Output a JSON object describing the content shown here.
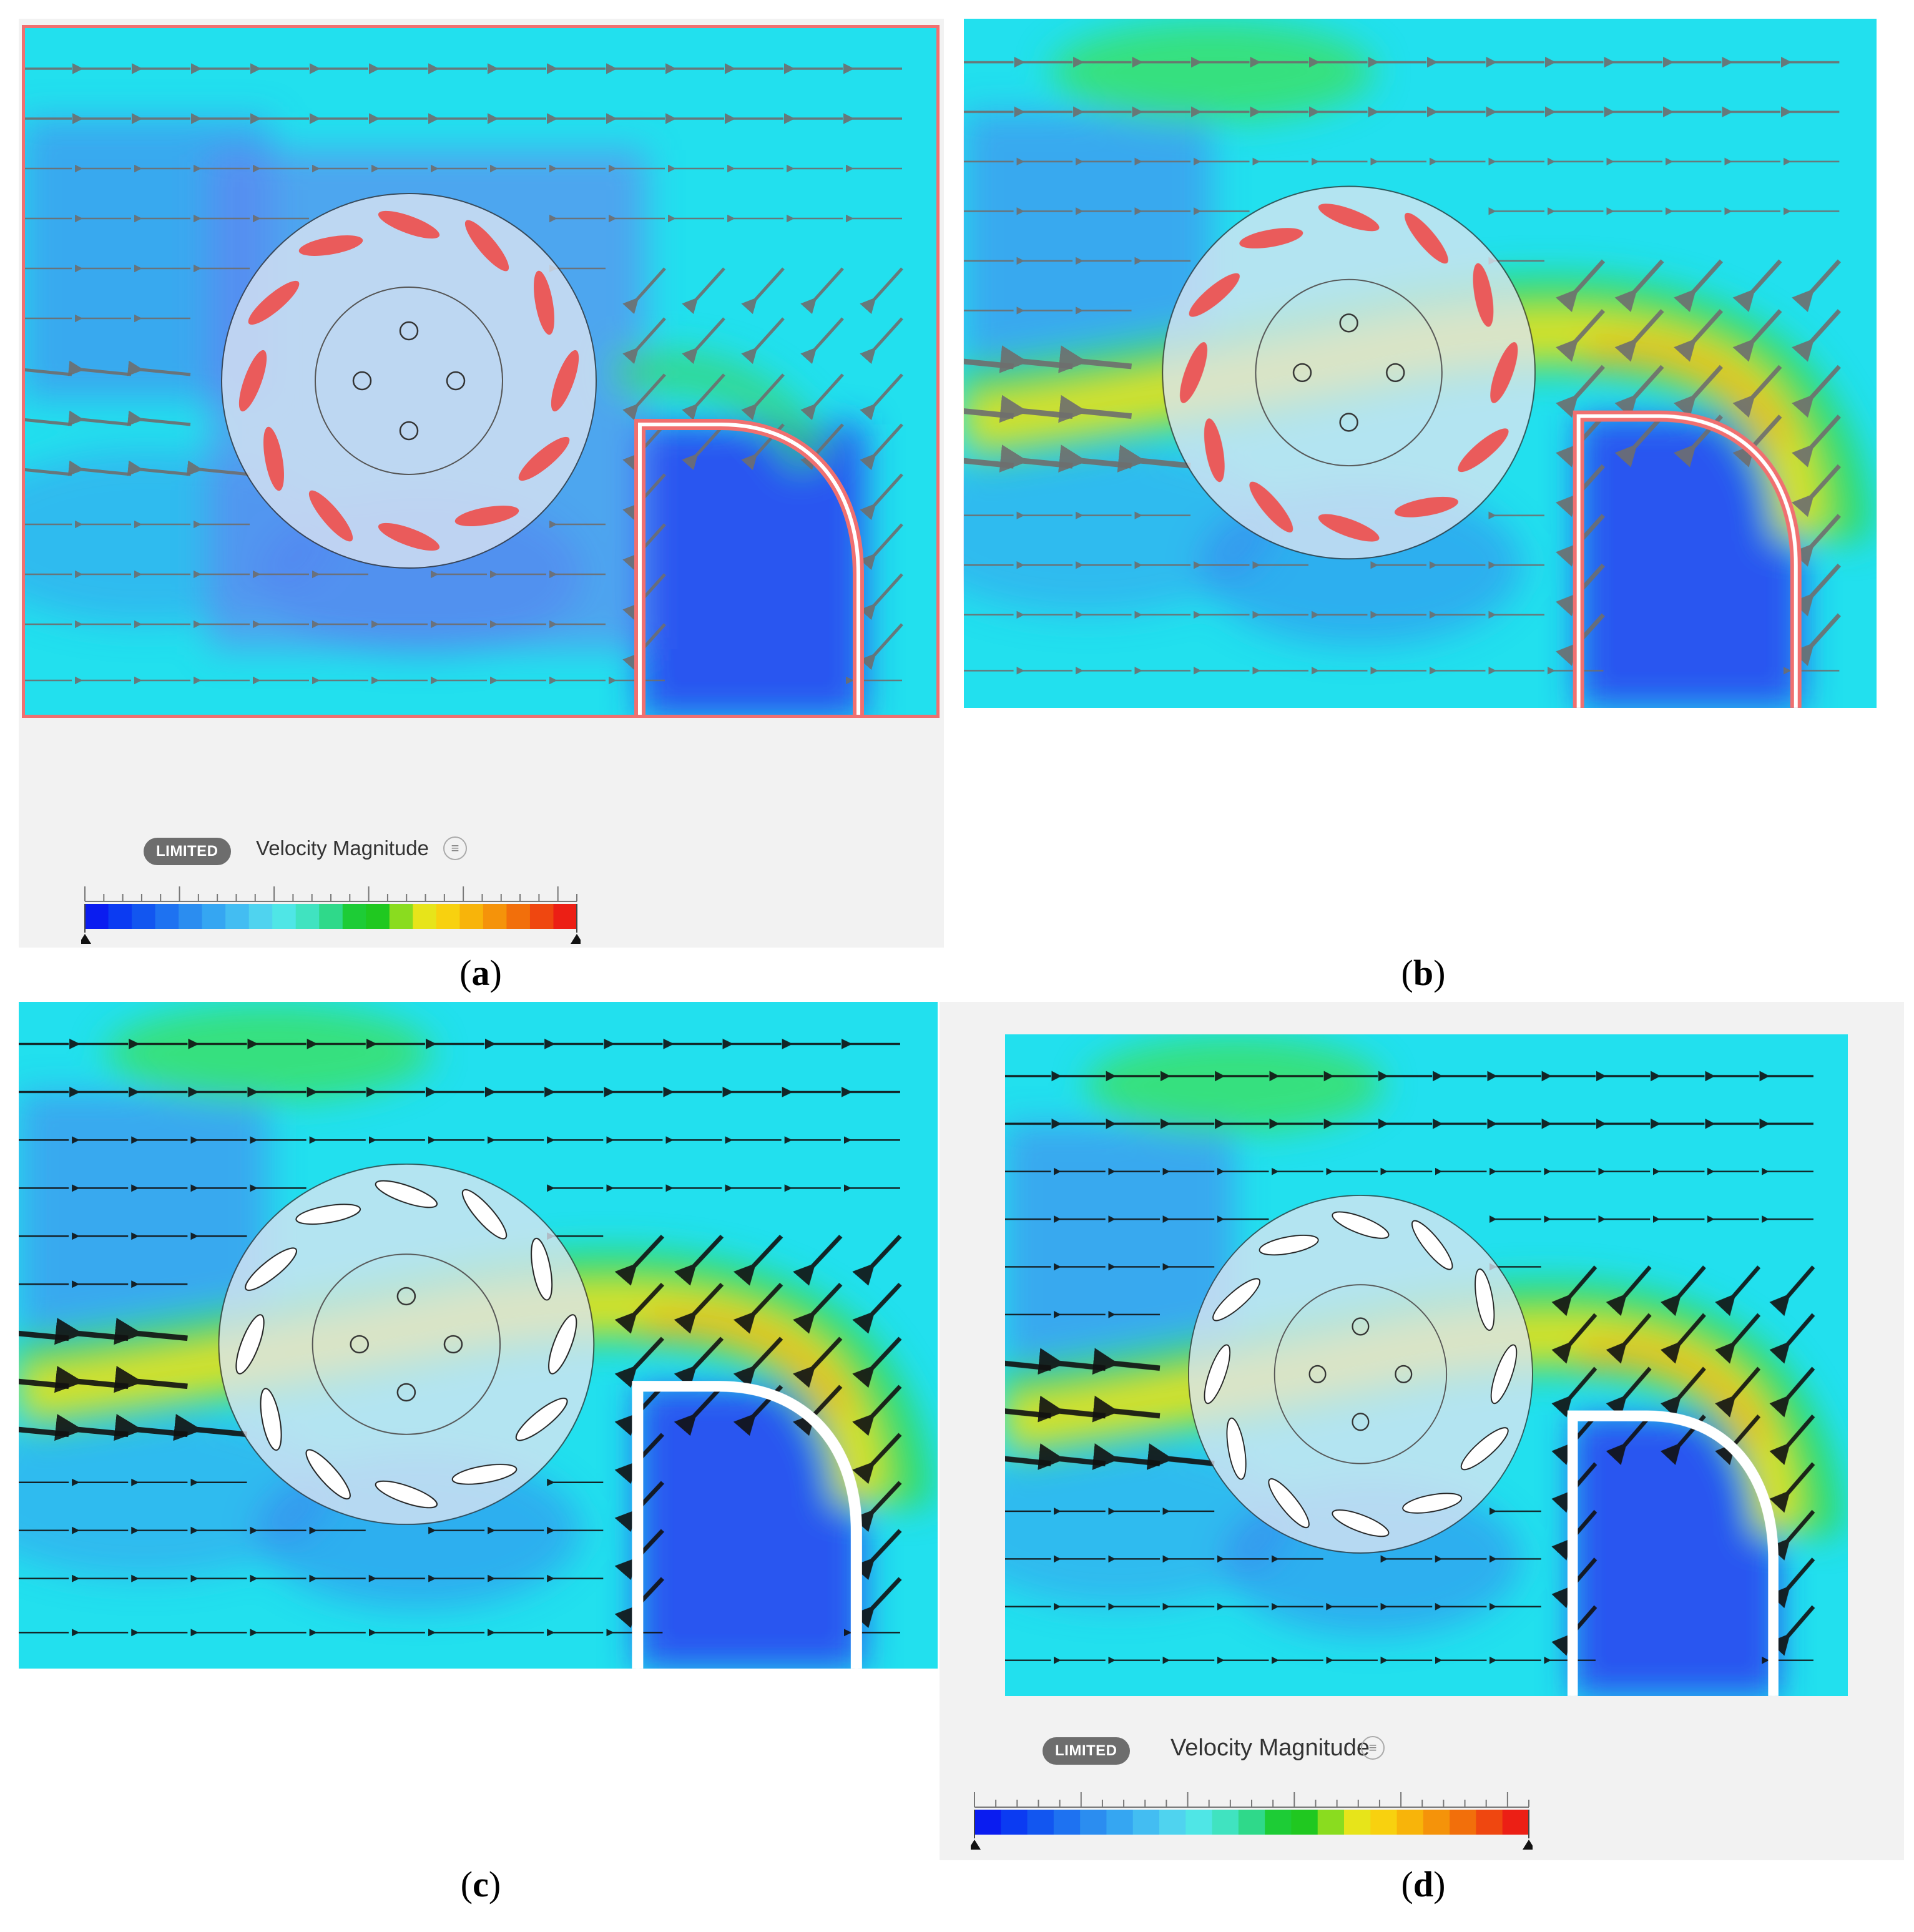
{
  "panels": [
    {
      "id": "a",
      "caption_letter": "a",
      "has_legend": true
    },
    {
      "id": "b",
      "caption_letter": "b",
      "has_legend": false
    },
    {
      "id": "c",
      "caption_letter": "c",
      "has_legend": false
    },
    {
      "id": "d",
      "caption_letter": "d",
      "has_legend": true
    }
  ],
  "legend": {
    "badge": "LIMITED",
    "title": "Velocity Magnitude",
    "info_glyph": "≡",
    "scale_colors": [
      "#0a1cf0",
      "#0b3bf2",
      "#1256f0",
      "#1e72f1",
      "#2b8df0",
      "#35a6f2",
      "#43bdf2",
      "#4fd3ef",
      "#4fe6e6",
      "#40e3c0",
      "#2fd98a",
      "#1dcc36",
      "#20c820",
      "#8adc1f",
      "#e7e41a",
      "#f8d10f",
      "#f8b40a",
      "#f5930a",
      "#f26f0b",
      "#ef4710",
      "#ec1f15"
    ]
  },
  "colors": {
    "background_field": "#22e0ee",
    "rotor_face": "#dde6f3",
    "blade_red": "#ea5b5b",
    "wall_red": "#f07070",
    "wall_white": "#ffffff",
    "arrow_grey": "#6e6e6e",
    "arrow_black": "#111111"
  }
}
